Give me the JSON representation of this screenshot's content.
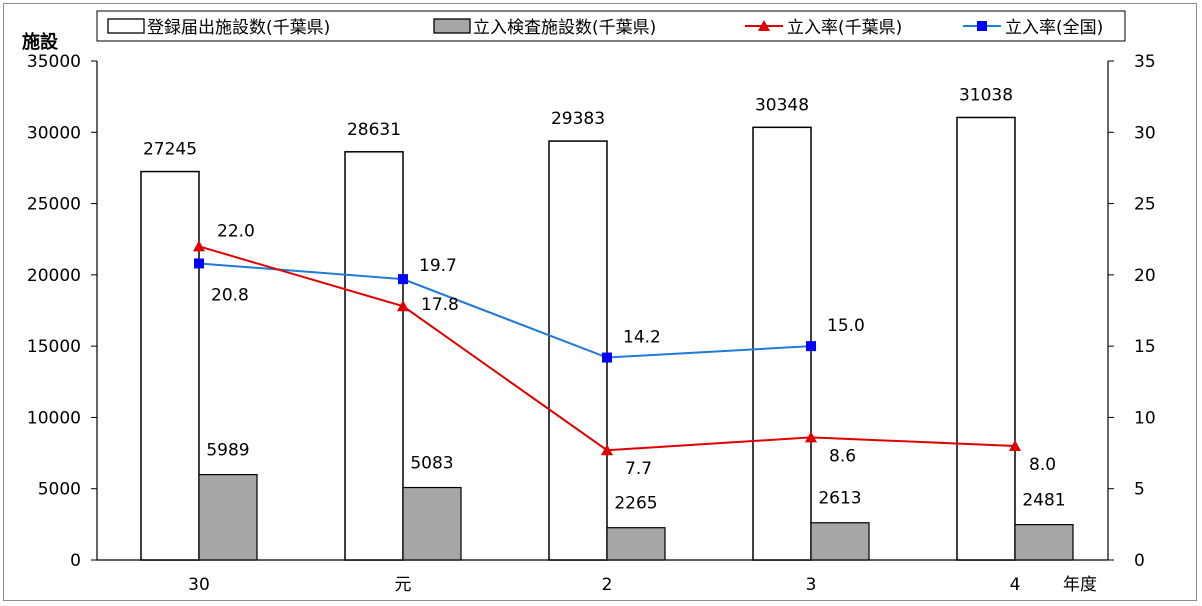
{
  "chart_data": {
    "type": "bar",
    "categories": [
      "30",
      "元",
      "2",
      "3",
      "4"
    ],
    "yleft_label": "施設",
    "x_unit_label": "年度",
    "yleft_ticks": [
      "0",
      "5000",
      "10000",
      "15000",
      "20000",
      "25000",
      "30000",
      "35000"
    ],
    "yright_ticks": [
      "0",
      "5",
      "10",
      "15",
      "20",
      "25",
      "30",
      "35"
    ],
    "yleft_lim": [
      0,
      35000
    ],
    "yright_lim": [
      0,
      35
    ],
    "legend_position": "top",
    "series": [
      {
        "name": "登録届出施設数(千葉県)",
        "kind": "bar",
        "axis": "left",
        "color": "#ffffff",
        "values": [
          27245,
          28631,
          29383,
          30348,
          31038
        ],
        "labels": [
          "27245",
          "28631",
          "29383",
          "30348",
          "31038"
        ]
      },
      {
        "name": "立入検査施設数(千葉県)",
        "kind": "bar",
        "axis": "left",
        "color": "#a6a6a6",
        "values": [
          5989,
          5083,
          2265,
          2613,
          2481
        ],
        "labels": [
          "5989",
          "5083",
          "2265",
          "2613",
          "2481"
        ]
      },
      {
        "name": "立入率(千葉県)",
        "kind": "line",
        "marker": "triangle",
        "axis": "right",
        "color": "#e00000",
        "values": [
          22.0,
          17.8,
          7.7,
          8.6,
          8.0
        ],
        "labels": [
          "22.0",
          "17.8",
          "7.7",
          "8.6",
          "8.0"
        ]
      },
      {
        "name": "立入率(全国)",
        "kind": "line",
        "marker": "square",
        "axis": "right",
        "color": "#1f7ad8",
        "marker_color": "#0000ff",
        "values": [
          20.8,
          19.7,
          14.2,
          15.0,
          null
        ],
        "labels": [
          "20.8",
          "19.7",
          "14.2",
          "15.0",
          null
        ]
      }
    ]
  }
}
